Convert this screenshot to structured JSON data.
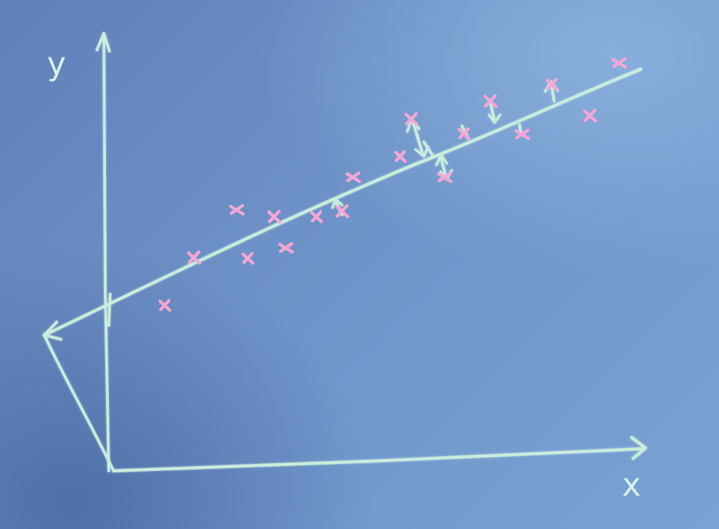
{
  "axes": {
    "x_label": "x",
    "y_label": "y"
  },
  "colors": {
    "background": "#6e93c8",
    "chalk": "#c9ecdc",
    "data_marks": "#f6a6d6"
  },
  "icons": {
    "axis_arrowheads": "arrow-head-icon",
    "residual_arrows": "double-arrow-icon",
    "data_points": "cross-mark-icon"
  }
}
